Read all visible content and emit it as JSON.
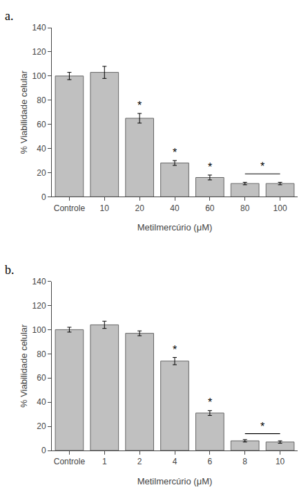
{
  "chart_data": [
    {
      "type": "bar",
      "title": "a.",
      "categories": [
        "Controle",
        "10",
        "20",
        "40",
        "60",
        "80",
        "100"
      ],
      "values": [
        100,
        103,
        65,
        28,
        16,
        11,
        11
      ],
      "errors": [
        3,
        5,
        4,
        2,
        2,
        1,
        1
      ],
      "color": "#c0c0c0",
      "ylim": [
        0,
        140
      ],
      "yticks": [
        0,
        20,
        40,
        60,
        80,
        100,
        120,
        140
      ],
      "ylabel": "% Viabilidade celular",
      "xlabel": "Metilmercúrio (μM)",
      "grid": false,
      "annotations": [
        {
          "category": "20",
          "text": "*"
        },
        {
          "category": "40",
          "text": "*"
        },
        {
          "category": "60",
          "text": "*"
        }
      ],
      "bracket": {
        "from": "80",
        "to": "100",
        "y": 19,
        "text": "*"
      }
    },
    {
      "type": "bar",
      "title": "b.",
      "categories": [
        "Controle",
        "1",
        "2",
        "4",
        "6",
        "8",
        "10"
      ],
      "values": [
        100,
        104,
        97,
        74,
        31,
        8,
        7
      ],
      "errors": [
        2,
        3,
        2,
        3,
        2,
        1,
        1
      ],
      "color": "#c0c0c0",
      "ylim": [
        0,
        140
      ],
      "yticks": [
        0,
        20,
        40,
        60,
        80,
        100,
        120,
        140
      ],
      "ylabel": "% Viabilidade celular",
      "xlabel": "Metilmercúrio (μM)",
      "grid": false,
      "annotations": [
        {
          "category": "4",
          "text": "*"
        },
        {
          "category": "6",
          "text": "*"
        }
      ],
      "bracket": {
        "from": "8",
        "to": "10",
        "y": 14,
        "text": "*"
      }
    }
  ]
}
